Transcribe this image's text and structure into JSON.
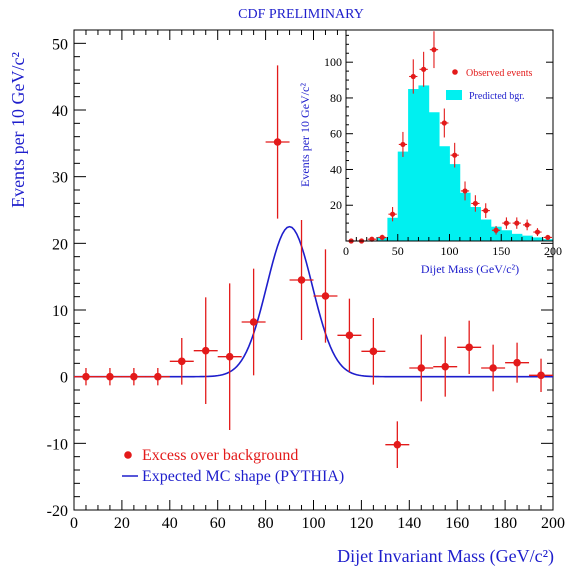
{
  "colors": {
    "axis_label": "#1e1ecc",
    "title": "#1e1ecc",
    "data_points": "#e31a1a",
    "mc_curve": "#1e1ecc",
    "histogram_fill": "#00f0f0",
    "frame": "#000000"
  },
  "chart_data": [
    {
      "id": "main",
      "type": "scatter",
      "title": "CDF PRELIMINARY",
      "xlabel": "Dijet Invariant Mass (GeV/c²)",
      "ylabel": "Events per 10 GeV/c²",
      "xlim": [
        0,
        200
      ],
      "ylim": [
        -20,
        52
      ],
      "x_ticks": [
        "0",
        "20",
        "40",
        "60",
        "80",
        "100",
        "120",
        "140",
        "160",
        "180",
        "200"
      ],
      "y_ticks": [
        "-20",
        "-10",
        "0",
        "10",
        "20",
        "30",
        "40",
        "50"
      ],
      "y_tick_values": [
        -20,
        -10,
        0,
        10,
        20,
        30,
        40,
        50
      ],
      "series": [
        {
          "name": "Excess over background",
          "type": "points_with_errors",
          "x": [
            5,
            15,
            25,
            35,
            45,
            55,
            65,
            75,
            85,
            95,
            105,
            115,
            125,
            135,
            145,
            155,
            165,
            175,
            185,
            195
          ],
          "y": [
            0,
            0,
            0,
            0,
            2.3,
            3.9,
            3.0,
            8.2,
            35.2,
            14.5,
            12.1,
            6.2,
            3.8,
            -10.2,
            1.3,
            1.5,
            4.4,
            1.3,
            2.1,
            0.2
          ],
          "y_err": [
            1.3,
            1.3,
            1.3,
            1.3,
            3.5,
            8.0,
            11.0,
            8.0,
            11.5,
            9.0,
            7.0,
            5.5,
            5.0,
            3.5,
            5.0,
            4.5,
            4.0,
            3.5,
            3.0,
            2.5
          ],
          "x_err": 5
        },
        {
          "name": "Expected MC shape (PYTHIA)",
          "type": "line",
          "shape": "gaussian",
          "amplitude": 22.5,
          "mean": 90,
          "sigma": 9.5
        }
      ],
      "legend": {
        "position": "bottom-left",
        "entries": [
          "Excess over background",
          "Expected MC shape (PYTHIA)"
        ]
      }
    },
    {
      "id": "inset",
      "type": "bar",
      "xlabel": "Dijet Mass (GeV/c²)",
      "ylabel": "Events per 10 GeV/c²",
      "xlim": [
        0,
        200
      ],
      "ylim": [
        0,
        118
      ],
      "x_ticks": [
        "0",
        "50",
        "100",
        "150",
        "200"
      ],
      "y_ticks": [
        "20",
        "40",
        "60",
        "80",
        "100"
      ],
      "y_tick_values": [
        20,
        40,
        60,
        80,
        100
      ],
      "series": [
        {
          "name": "Predicted bgr.",
          "type": "histogram",
          "bin_edges": [
            0,
            10,
            20,
            30,
            40,
            50,
            60,
            70,
            80,
            90,
            100,
            110,
            120,
            130,
            140,
            150,
            160,
            170,
            180,
            190,
            200
          ],
          "values": [
            0,
            0,
            0,
            2,
            13,
            50,
            85,
            87,
            72,
            53,
            43,
            27,
            19,
            12,
            8,
            6,
            4,
            3,
            2,
            1
          ]
        },
        {
          "name": "Observed events",
          "type": "points_with_errors",
          "x": [
            5,
            15,
            25,
            35,
            45,
            55,
            65,
            75,
            85,
            95,
            105,
            115,
            125,
            135,
            145,
            155,
            165,
            175,
            185,
            195
          ],
          "y": [
            0,
            0,
            1,
            2,
            15,
            54,
            92,
            96,
            107,
            66,
            48,
            28,
            21,
            17,
            6,
            10,
            10,
            9,
            5,
            2
          ],
          "y_err": [
            1,
            1,
            1,
            1.5,
            4,
            7,
            9.6,
            9.8,
            10.3,
            8.1,
            6.9,
            5.3,
            4.6,
            4.1,
            2.4,
            3.2,
            3.2,
            3,
            2.2,
            1.4
          ]
        }
      ],
      "legend": {
        "position": "top-right",
        "entries": [
          "Observed events",
          "Predicted bgr."
        ]
      }
    }
  ]
}
